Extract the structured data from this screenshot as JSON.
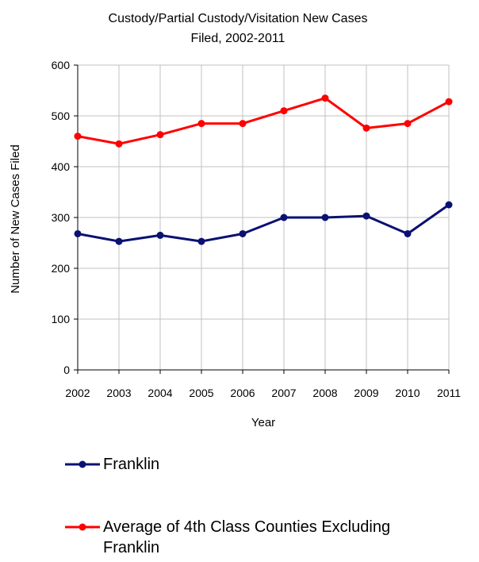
{
  "chart_data": {
    "type": "line",
    "title_lines": [
      "Custody/Partial Custody/Visitation New  Cases",
      "Filed, 2002-2011"
    ],
    "xlabel": "Year",
    "ylabel": "Number of New Cases Filed",
    "x": [
      "2002",
      "2003",
      "2004",
      "2005",
      "2006",
      "2007",
      "2008",
      "2009",
      "2010",
      "2011"
    ],
    "ylim": [
      0,
      600
    ],
    "yticks": [
      0,
      100,
      200,
      300,
      400,
      500,
      600
    ],
    "grid": true,
    "legend_position": "bottom",
    "series": [
      {
        "name": "Franklin",
        "color": "#0a1172",
        "values": [
          268,
          253,
          265,
          253,
          268,
          300,
          300,
          303,
          268,
          325
        ]
      },
      {
        "name": "Average of 4th Class Counties Excluding Franklin",
        "name_lines": [
          "Average of 4th Class Counties Excluding",
          "Franklin"
        ],
        "color": "#ff0000",
        "values": [
          460,
          445,
          463,
          485,
          485,
          510,
          535,
          476,
          485,
          528
        ]
      }
    ]
  }
}
